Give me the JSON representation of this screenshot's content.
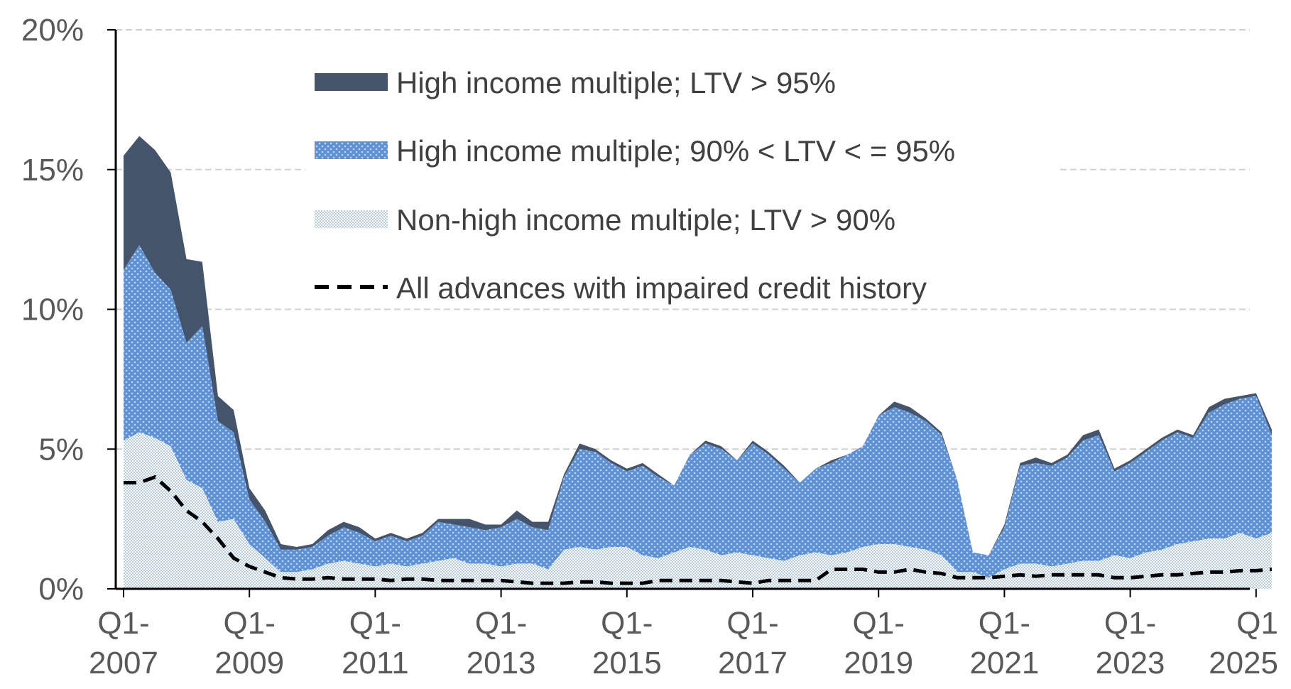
{
  "chart_data": {
    "type": "area",
    "ylim": [
      0,
      20
    ],
    "y_unit": "%",
    "grid": true,
    "legend_position": "top-center",
    "yticks": [
      "0%",
      "5%",
      "10%",
      "15%",
      "20%"
    ],
    "yticks_values": [
      0,
      5,
      10,
      15,
      20
    ],
    "xticks": [
      {
        "line1": "Q1-",
        "line2": "2007",
        "index": 0
      },
      {
        "line1": "Q1-",
        "line2": "2009",
        "index": 8
      },
      {
        "line1": "Q1-",
        "line2": "2011",
        "index": 16
      },
      {
        "line1": "Q1-",
        "line2": "2013",
        "index": 24
      },
      {
        "line1": "Q1-",
        "line2": "2015",
        "index": 32
      },
      {
        "line1": "Q1-",
        "line2": "2017",
        "index": 40
      },
      {
        "line1": "Q1-",
        "line2": "2019",
        "index": 48
      },
      {
        "line1": "Q1-",
        "line2": "2021",
        "index": 56
      },
      {
        "line1": "Q1-",
        "line2": "2023",
        "index": 64
      },
      {
        "line1": "Q1",
        "line2": "2025",
        "index": 72
      }
    ],
    "x_start": "Q1-2007",
    "x_frequency": "quarterly",
    "colors": {
      "high_ltv_95": "#44546a",
      "high_ltv_90_95": "#5b8fd6",
      "nonhigh_ltv_90": "#dbe7f7",
      "impaired": "#000000"
    },
    "series": [
      {
        "name": "Non-high income multiple; LTV > 90%",
        "values": [
          5.3,
          5.6,
          5.4,
          5.1,
          3.9,
          3.6,
          2.4,
          2.5,
          1.6,
          1.1,
          0.6,
          0.6,
          0.7,
          0.9,
          1.0,
          0.9,
          0.8,
          0.9,
          0.8,
          0.9,
          1.0,
          1.1,
          0.9,
          0.9,
          0.8,
          0.9,
          0.9,
          0.7,
          1.4,
          1.5,
          1.4,
          1.5,
          1.5,
          1.2,
          1.1,
          1.3,
          1.5,
          1.4,
          1.2,
          1.3,
          1.2,
          1.1,
          1.0,
          1.2,
          1.3,
          1.2,
          1.3,
          1.5,
          1.6,
          1.6,
          1.5,
          1.4,
          1.2,
          0.6,
          0.6,
          0.4,
          0.7,
          0.9,
          0.9,
          0.8,
          0.9,
          1.0,
          1.0,
          1.2,
          1.1,
          1.3,
          1.4,
          1.6,
          1.7,
          1.8,
          1.8,
          2.0,
          1.8,
          2.0
        ]
      },
      {
        "name": "High income multiple; 90% < LTV < = 95%",
        "values": [
          6.1,
          6.7,
          5.9,
          5.6,
          4.9,
          5.8,
          3.6,
          3.1,
          1.6,
          1.3,
          0.8,
          0.8,
          0.8,
          1.0,
          1.2,
          1.1,
          0.9,
          1.0,
          0.9,
          1.0,
          1.4,
          1.2,
          1.3,
          1.2,
          1.4,
          1.6,
          1.3,
          1.4,
          2.6,
          3.5,
          3.5,
          3.0,
          2.7,
          3.2,
          2.9,
          2.4,
          3.3,
          3.8,
          3.8,
          3.3,
          4.0,
          3.7,
          3.3,
          2.6,
          3.0,
          3.3,
          3.5,
          3.6,
          4.6,
          4.9,
          4.8,
          4.6,
          4.3,
          3.3,
          0.7,
          0.8,
          1.5,
          3.5,
          3.6,
          3.6,
          3.8,
          4.3,
          4.5,
          3.0,
          3.4,
          3.6,
          3.9,
          4.0,
          3.7,
          4.5,
          4.8,
          4.8,
          5.1,
          3.5
        ]
      },
      {
        "name": "High income multiple; LTV > 95%",
        "values": [
          4.1,
          3.9,
          4.4,
          4.2,
          3.0,
          2.3,
          0.9,
          0.8,
          0.4,
          0.4,
          0.2,
          0.1,
          0.1,
          0.2,
          0.2,
          0.2,
          0.1,
          0.1,
          0.1,
          0.1,
          0.1,
          0.2,
          0.3,
          0.2,
          0.1,
          0.3,
          0.2,
          0.3,
          0.1,
          0.2,
          0.1,
          0.1,
          0.1,
          0.1,
          0.1,
          0.0,
          0.0,
          0.1,
          0.1,
          0.0,
          0.1,
          0.1,
          0.1,
          0.0,
          0.0,
          0.1,
          0.0,
          0.0,
          0.0,
          0.2,
          0.2,
          0.1,
          0.1,
          0.0,
          0.0,
          0.0,
          0.1,
          0.1,
          0.2,
          0.1,
          0.1,
          0.2,
          0.2,
          0.1,
          0.1,
          0.1,
          0.1,
          0.1,
          0.1,
          0.2,
          0.2,
          0.1,
          0.1,
          0.2
        ]
      },
      {
        "name": "All advances with impaired credit history",
        "line": true,
        "values": [
          3.8,
          3.8,
          4.0,
          3.5,
          2.8,
          2.4,
          1.8,
          1.1,
          0.8,
          0.6,
          0.4,
          0.35,
          0.35,
          0.4,
          0.35,
          0.35,
          0.35,
          0.3,
          0.35,
          0.35,
          0.3,
          0.3,
          0.3,
          0.3,
          0.3,
          0.25,
          0.2,
          0.2,
          0.2,
          0.25,
          0.25,
          0.2,
          0.2,
          0.2,
          0.3,
          0.3,
          0.3,
          0.3,
          0.3,
          0.25,
          0.2,
          0.3,
          0.3,
          0.3,
          0.3,
          0.7,
          0.7,
          0.7,
          0.6,
          0.6,
          0.7,
          0.6,
          0.55,
          0.4,
          0.4,
          0.4,
          0.45,
          0.5,
          0.45,
          0.5,
          0.5,
          0.5,
          0.5,
          0.4,
          0.4,
          0.45,
          0.5,
          0.5,
          0.55,
          0.6,
          0.6,
          0.65,
          0.65,
          0.7
        ]
      }
    ]
  }
}
